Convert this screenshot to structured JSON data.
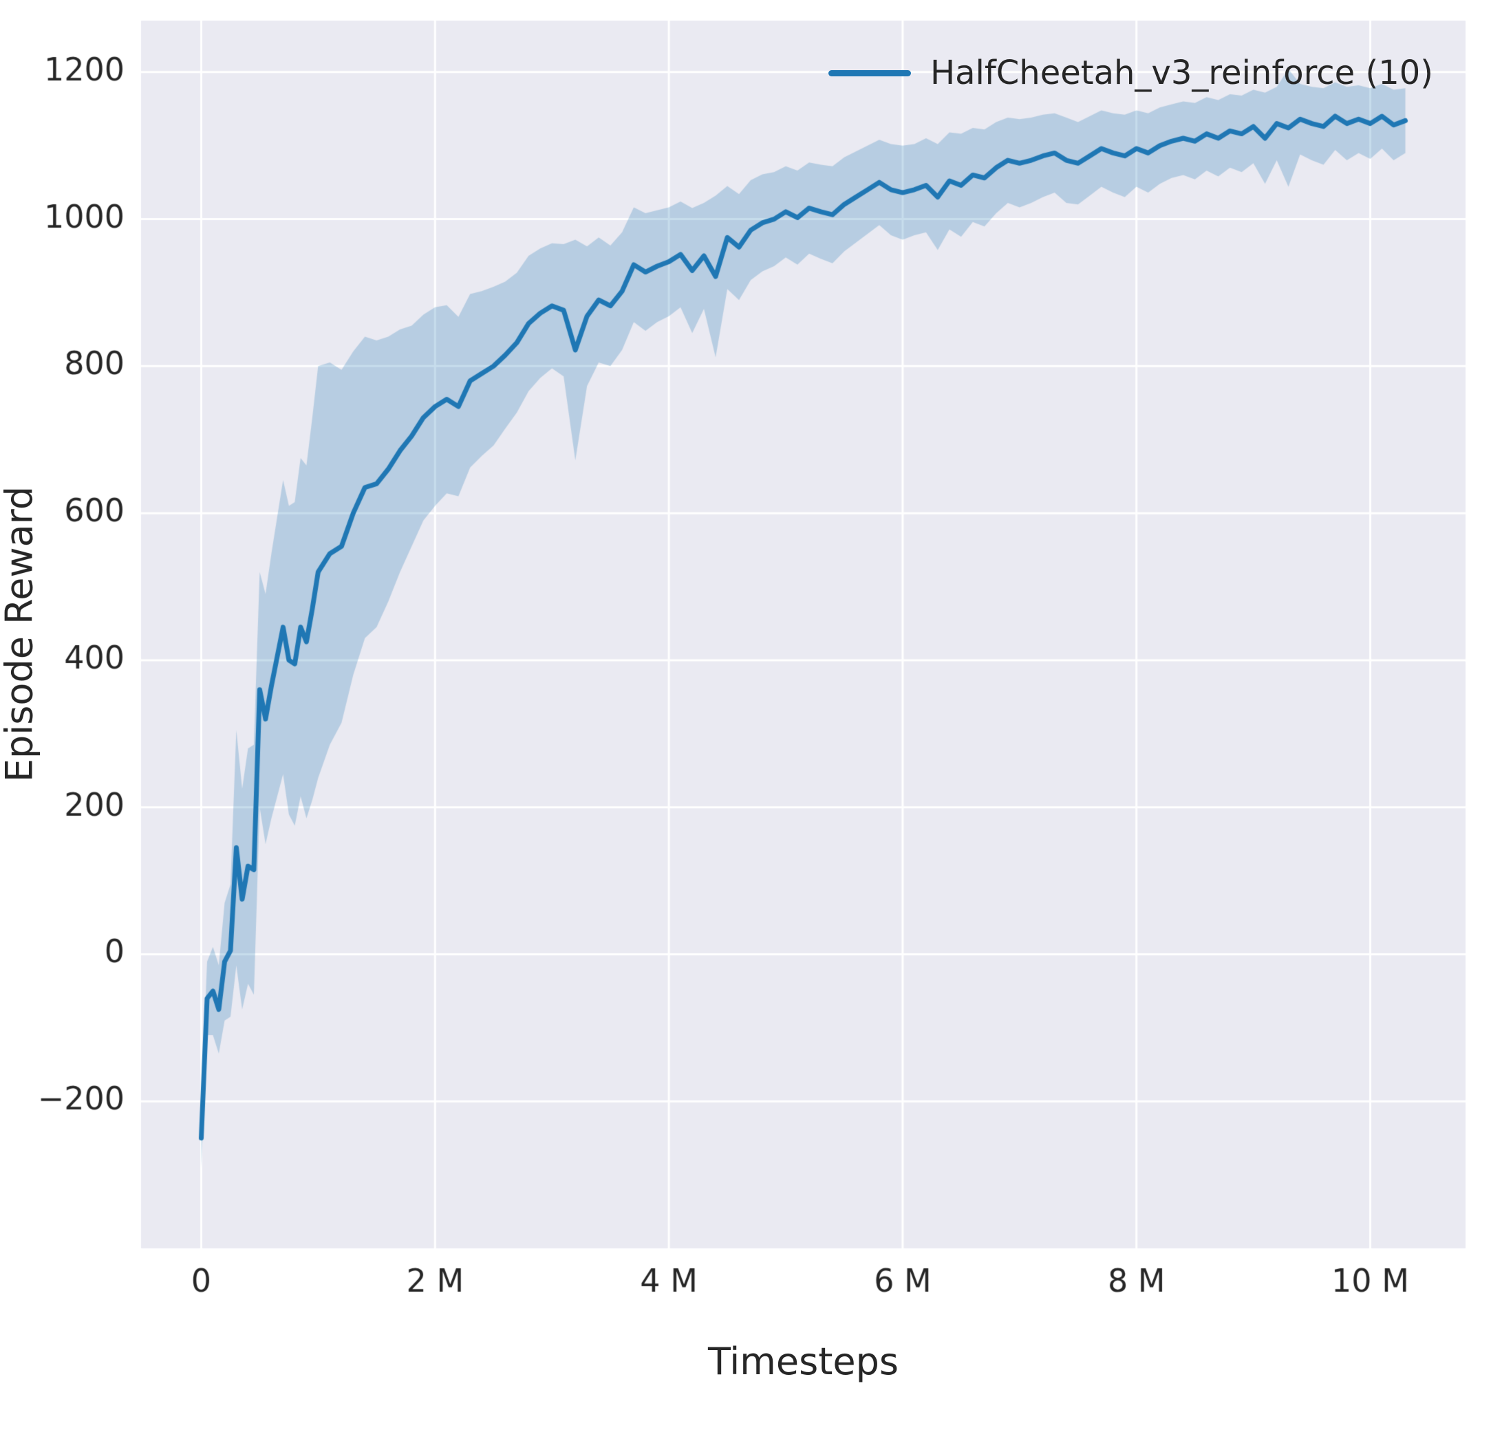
{
  "chart_data": {
    "type": "line",
    "title": "",
    "xlabel": "Timesteps",
    "ylabel": "Episode Reward",
    "xlim": [
      -0.515,
      10.815
    ],
    "ylim": [
      -400,
      1270
    ],
    "x_unit": "millions",
    "grid": true,
    "legend_position": "upper right",
    "xticks": {
      "values": [
        0,
        2,
        4,
        6,
        8,
        10
      ],
      "labels": [
        "0",
        "2 M",
        "4 M",
        "6 M",
        "8 M",
        "10 M"
      ]
    },
    "yticks": {
      "values": [
        -200,
        0,
        200,
        400,
        600,
        800,
        1000,
        1200
      ],
      "labels": [
        "−200",
        "0",
        "200",
        "400",
        "600",
        "800",
        "1000",
        "1200"
      ]
    },
    "colors": {
      "line": "#1f77b4",
      "band": "rgba(31,119,180,0.25)",
      "plot_background": "#eaeaf2",
      "grid": "#ffffff",
      "text": "#262626"
    },
    "series": [
      {
        "name": "HalfCheetah_v3_reinforce (10)",
        "x": [
          0,
          0.05,
          0.1,
          0.15,
          0.2,
          0.25,
          0.3,
          0.35,
          0.4,
          0.45,
          0.5,
          0.55,
          0.6,
          0.65,
          0.7,
          0.75,
          0.8,
          0.85,
          0.9,
          0.95,
          1.0,
          1.1,
          1.2,
          1.3,
          1.4,
          1.5,
          1.6,
          1.7,
          1.8,
          1.9,
          2.0,
          2.1,
          2.2,
          2.3,
          2.4,
          2.5,
          2.6,
          2.7,
          2.8,
          2.9,
          3.0,
          3.1,
          3.2,
          3.3,
          3.4,
          3.5,
          3.6,
          3.7,
          3.8,
          3.9,
          4.0,
          4.1,
          4.2,
          4.3,
          4.4,
          4.5,
          4.6,
          4.7,
          4.8,
          4.9,
          5.0,
          5.1,
          5.2,
          5.3,
          5.4,
          5.5,
          5.6,
          5.7,
          5.8,
          5.9,
          6.0,
          6.1,
          6.2,
          6.3,
          6.4,
          6.5,
          6.6,
          6.7,
          6.8,
          6.9,
          7.0,
          7.1,
          7.2,
          7.3,
          7.4,
          7.5,
          7.6,
          7.7,
          7.8,
          7.9,
          8.0,
          8.1,
          8.2,
          8.3,
          8.4,
          8.5,
          8.6,
          8.7,
          8.8,
          8.9,
          9.0,
          9.1,
          9.2,
          9.3,
          9.4,
          9.5,
          9.6,
          9.7,
          9.8,
          9.9,
          10.0,
          10.1,
          10.2,
          10.3
        ],
        "mean": [
          -250,
          -60,
          -50,
          -75,
          -10,
          5,
          145,
          75,
          120,
          115,
          360,
          320,
          365,
          405,
          445,
          400,
          395,
          445,
          425,
          470,
          520,
          545,
          555,
          600,
          635,
          640,
          660,
          685,
          705,
          730,
          745,
          755,
          745,
          780,
          790,
          800,
          815,
          832,
          858,
          872,
          882,
          876,
          822,
          868,
          890,
          882,
          902,
          938,
          928,
          936,
          942,
          952,
          930,
          950,
          922,
          975,
          962,
          985,
          995,
          1000,
          1010,
          1002,
          1015,
          1010,
          1006,
          1020,
          1030,
          1040,
          1050,
          1040,
          1036,
          1040,
          1046,
          1030,
          1052,
          1046,
          1060,
          1056,
          1070,
          1080,
          1076,
          1080,
          1086,
          1090,
          1080,
          1076,
          1086,
          1096,
          1090,
          1086,
          1096,
          1090,
          1100,
          1106,
          1110,
          1106,
          1116,
          1110,
          1120,
          1116,
          1126,
          1110,
          1130,
          1124,
          1136,
          1130,
          1126,
          1140,
          1130,
          1136,
          1130,
          1140,
          1128,
          1134
        ],
        "std": [
          40,
          50,
          60,
          60,
          80,
          90,
          160,
          150,
          160,
          170,
          160,
          170,
          180,
          190,
          200,
          210,
          220,
          230,
          240,
          260,
          280,
          260,
          240,
          220,
          205,
          195,
          180,
          165,
          150,
          140,
          135,
          128,
          122,
          118,
          112,
          108,
          100,
          95,
          92,
          88,
          85,
          90,
          150,
          95,
          85,
          82,
          80,
          78,
          80,
          76,
          74,
          72,
          85,
          72,
          110,
          70,
          72,
          68,
          66,
          64,
          62,
          64,
          62,
          64,
          66,
          64,
          62,
          60,
          58,
          62,
          64,
          62,
          64,
          72,
          66,
          70,
          64,
          66,
          62,
          58,
          60,
          58,
          56,
          54,
          58,
          56,
          54,
          52,
          54,
          56,
          52,
          54,
          52,
          50,
          50,
          52,
          50,
          52,
          50,
          52,
          50,
          62,
          50,
          80,
          48,
          50,
          52,
          46,
          50,
          46,
          48,
          44,
          48,
          44
        ]
      }
    ]
  },
  "legend": {
    "label": "HalfCheetah_v3_reinforce (10)"
  }
}
